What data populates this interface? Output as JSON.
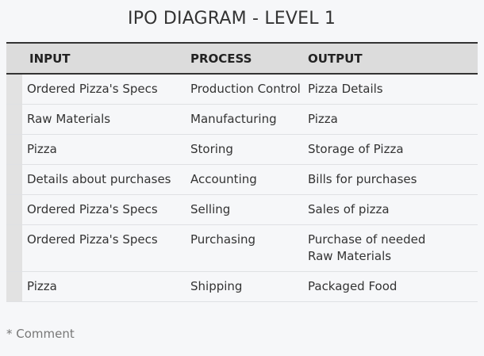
{
  "title": "IPO DIAGRAM - LEVEL 1",
  "headers": {
    "input": "INPUT",
    "process": "PROCESS",
    "output": "OUTPUT"
  },
  "rows": [
    {
      "input": "Ordered Pizza's Specs",
      "process": "Production Control",
      "output": "Pizza Details"
    },
    {
      "input": "Raw Materials",
      "process": "Manufacturing",
      "output": "Pizza"
    },
    {
      "input": "Pizza",
      "process": "Storing",
      "output": "Storage of Pizza"
    },
    {
      "input": "Details about purchases",
      "process": "Accounting",
      "output": "Bills for purchases"
    },
    {
      "input": "Ordered Pizza's Specs",
      "process": "Selling",
      "output": "Sales of pizza"
    },
    {
      "input": "Ordered Pizza's Specs",
      "process": "Purchasing",
      "output": "Purchase of needed Raw Materials"
    },
    {
      "input": "Pizza",
      "process": "Shipping",
      "output": "Packaged Food"
    }
  ],
  "comment": "* Comment"
}
